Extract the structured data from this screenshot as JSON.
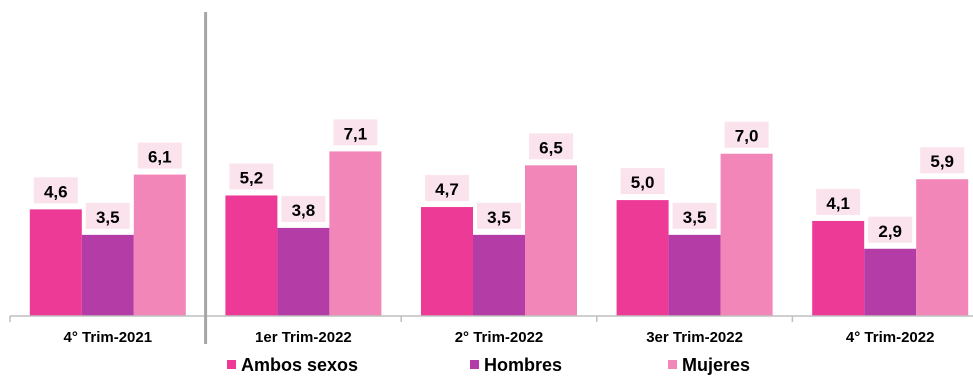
{
  "chart_data": {
    "type": "bar",
    "title": "",
    "xlabel": "",
    "ylabel": "",
    "categories": [
      "4° Trim-2021",
      "1er Trim-2022",
      "2° Trim-2022",
      "3er Trim-2022",
      "4° Trim-2022"
    ],
    "series": [
      {
        "name": "Ambos sexos",
        "color": "#ec3a96",
        "values": [
          4.6,
          5.2,
          4.7,
          5.0,
          4.1
        ],
        "labels": [
          "4,6",
          "5,2",
          "4,7",
          "5,0",
          "4,1"
        ]
      },
      {
        "name": "Hombres",
        "color": "#b43ca6",
        "values": [
          3.5,
          3.8,
          3.5,
          3.5,
          2.9
        ],
        "labels": [
          "3,5",
          "3,8",
          "3,5",
          "3,5",
          "2,9"
        ]
      },
      {
        "name": "Mujeres",
        "color": "#f286b8",
        "values": [
          6.1,
          7.1,
          6.5,
          7.0,
          5.9
        ],
        "labels": [
          "6,1",
          "7,1",
          "6,5",
          "7,0",
          "5,9"
        ]
      }
    ],
    "ylim": [
      0,
      13.2
    ],
    "grid": false,
    "legend_position": "bottom",
    "label_background": "#fbe3ee",
    "divider_color": "#a6a6a6"
  }
}
